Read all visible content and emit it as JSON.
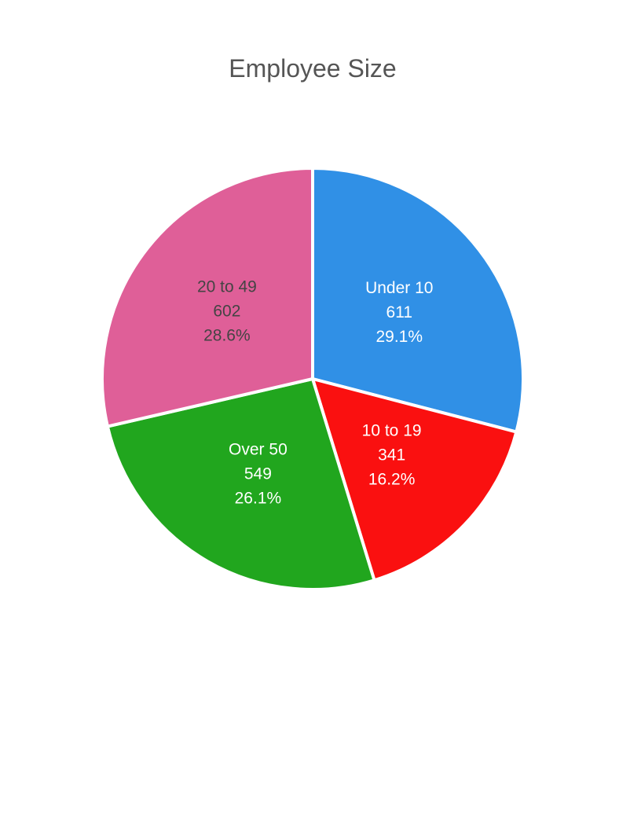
{
  "chart_data": {
    "type": "pie",
    "title": "Employee Size",
    "slices": [
      {
        "name": "Under 10",
        "value": 611,
        "percent": "29.1%",
        "color": "#3090e6",
        "label_color": "#ffffff"
      },
      {
        "name": "10 to 19",
        "value": 341,
        "percent": "16.2%",
        "color": "#fa1010",
        "label_color": "#ffffff"
      },
      {
        "name": "Over 50",
        "value": 549,
        "percent": "26.1%",
        "color": "#21a61e",
        "label_color": "#ffffff"
      },
      {
        "name": "20 to 49",
        "value": 602,
        "percent": "28.6%",
        "color": "#df5f98",
        "label_color": "#444444"
      }
    ],
    "start_angle_deg": 0,
    "direction": "clockwise",
    "legend": "none"
  }
}
